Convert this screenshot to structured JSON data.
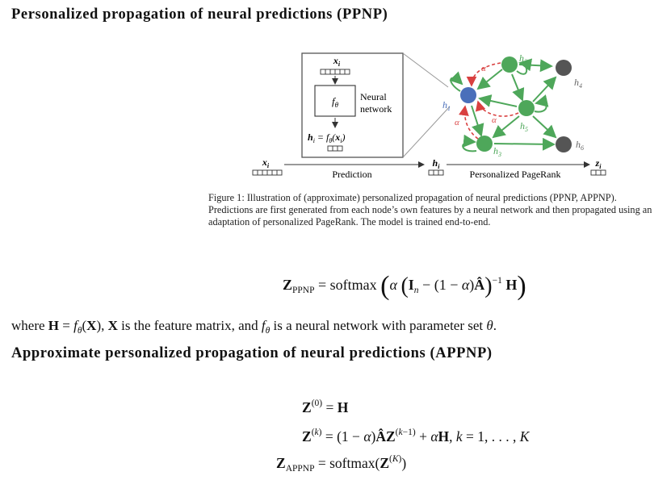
{
  "section1": {
    "title": "Personalized propagation of neural predictions (PPNP)"
  },
  "figure": {
    "caption": "Figure 1:  Illustration of (approximate) personalized propagation of neural predictions (PPNP, APPNP). Predictions are first generated from each node’s own features by a neural network and then propagated using an adaptation of personalized PageRank. The model is trained end-to-end.",
    "nn_label_1": "Neural",
    "nn_label_2": "network",
    "prediction_label": "Prediction",
    "pagerank_label": "Personalized PageRank",
    "alpha": "α",
    "node_labels": [
      "h1",
      "h2",
      "h3",
      "h4",
      "h5",
      "h6"
    ],
    "colors": {
      "green": "#4ea75a",
      "blue": "#4a6fba",
      "dark": "#555555",
      "red": "#d94040"
    }
  },
  "paragraph": {
    "where_text": "where",
    "equals": "=",
    "is_feature_matrix": "is the feature matrix, and",
    "is_nn_with_param": "is a neural network with parameter set"
  },
  "section2": {
    "title": "Approximate personalized propagation of neural predictions (APPNP)"
  },
  "equations": {
    "softmax": "softmax",
    "k_range": "k = 1, . . . , K"
  }
}
